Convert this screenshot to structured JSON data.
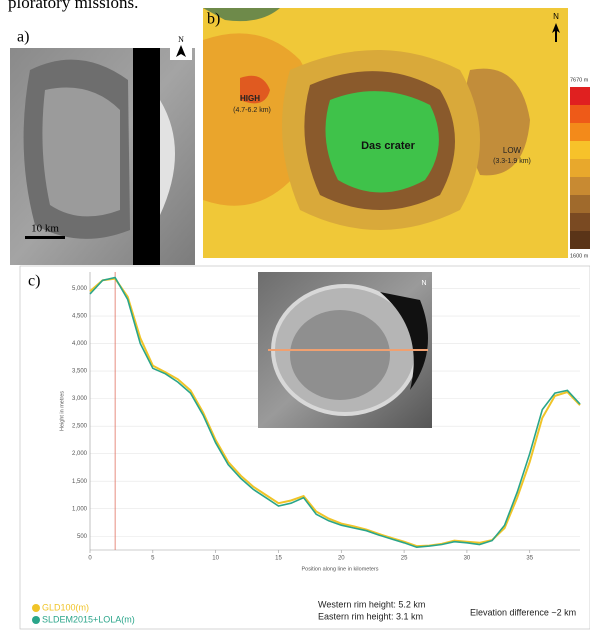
{
  "caption_fragment": "ploratory missions.",
  "panel_a": {
    "label": "a)",
    "north": "N",
    "scale_bar": "10 km"
  },
  "panel_b": {
    "label": "b)",
    "north": "N",
    "high": "HIGH",
    "high_range": "(4.7-6.2 km)",
    "crater": "Das crater",
    "low": "LOW",
    "low_range": "(3.3-1.9 km)",
    "scale_max": "7670 m",
    "scale_min": "1600 m"
  },
  "panel_c": {
    "label": "c)",
    "north": "N",
    "chart_data": {
      "type": "line",
      "x": [
        0,
        1,
        2,
        3,
        4,
        5,
        6,
        7,
        8,
        9,
        10,
        11,
        12,
        13,
        14,
        15,
        16,
        17,
        18,
        19,
        20,
        21,
        22,
        23,
        24,
        25,
        26,
        27,
        28,
        29,
        30,
        31,
        32,
        33,
        34,
        35,
        36,
        37,
        38,
        39
      ],
      "series": [
        {
          "name": "GLD100(m)",
          "color": "#f0c428",
          "values": [
            4950,
            5150,
            5180,
            4850,
            4100,
            3600,
            3480,
            3350,
            3150,
            2750,
            2250,
            1850,
            1600,
            1400,
            1250,
            1100,
            1150,
            1230,
            950,
            820,
            730,
            680,
            620,
            540,
            470,
            400,
            320,
            330,
            360,
            420,
            400,
            380,
            430,
            650,
            1200,
            1850,
            2650,
            3050,
            3120,
            2880
          ]
        },
        {
          "name": "SLDEM2015+LOLA(m)",
          "color": "#2aa58a",
          "values": [
            4900,
            5150,
            5200,
            4800,
            4000,
            3550,
            3450,
            3300,
            3100,
            2700,
            2200,
            1800,
            1550,
            1350,
            1200,
            1050,
            1100,
            1200,
            900,
            780,
            700,
            650,
            600,
            520,
            450,
            380,
            300,
            320,
            350,
            400,
            380,
            350,
            420,
            700,
            1300,
            2000,
            2800,
            3100,
            3150,
            2900
          ]
        }
      ],
      "xlabel": "Position along line in kilometers",
      "ylabel": "Height in metres",
      "xlim": [
        0,
        39
      ],
      "ylim": [
        250,
        5300
      ],
      "xticks": [
        0,
        5,
        10,
        15,
        20,
        25,
        30,
        35
      ],
      "yticks": [
        500,
        {
          "value": 1000,
          "label": "1,000"
        },
        {
          "value": 1500,
          "label": "1,500"
        },
        {
          "value": 2000,
          "label": "2,000"
        },
        {
          "value": 2500,
          "label": "2,500"
        },
        {
          "value": 3000,
          "label": "3,000"
        },
        {
          "value": 3500,
          "label": "3,500"
        },
        {
          "value": 4000,
          "label": "4,000"
        },
        {
          "value": 4500,
          "label": "4,500"
        },
        {
          "value": 5000,
          "label": "5,000"
        }
      ],
      "grid": true,
      "cursor_x": 2
    },
    "notes": [
      "Western rim height: 5.2 km",
      "Eastern rim height: 3.1 km",
      "Elevation difference ~2 km"
    ]
  }
}
